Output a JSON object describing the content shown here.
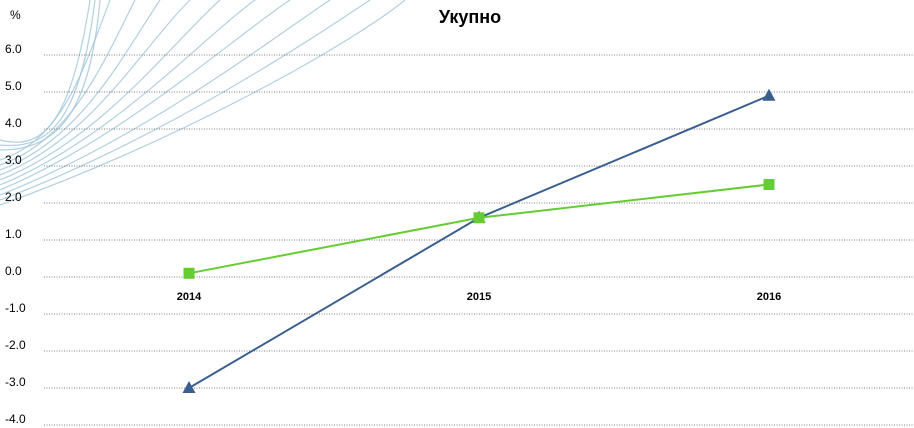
{
  "chart_data": {
    "type": "line",
    "title": "Укупно",
    "y_label": "%",
    "categories": [
      "2014",
      "2015",
      "2016"
    ],
    "series": [
      {
        "color": "#3a5f8f",
        "marker": "triangle",
        "values": [
          -3.0,
          1.6,
          4.9
        ]
      },
      {
        "color": "#66cc33",
        "marker": "square",
        "values": [
          0.1,
          1.6,
          2.5
        ]
      }
    ],
    "ylim": [
      -4,
      6
    ],
    "yticks": [
      {
        "value": -4,
        "label": "-4.0"
      },
      {
        "value": -3,
        "label": "-3.0"
      },
      {
        "value": -2,
        "label": "-2.0"
      },
      {
        "value": -1,
        "label": "-1.0"
      },
      {
        "value": 0,
        "label": "0.0"
      },
      {
        "value": 1,
        "label": "1.0"
      },
      {
        "value": 2,
        "label": "2.0"
      },
      {
        "value": 3,
        "label": "3.0"
      },
      {
        "value": 4,
        "label": "4.0"
      },
      {
        "value": 5,
        "label": "5.0"
      },
      {
        "value": 6,
        "label": "6.0"
      }
    ],
    "grid": true
  }
}
